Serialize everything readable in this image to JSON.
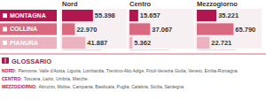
{
  "chart_data": {
    "type": "bar",
    "orientation": "horizontal",
    "data_labels": true,
    "tick_labels": false,
    "categories": [
      "MONTAGNA",
      "COLLINA",
      "PIANURA"
    ],
    "xlim": [
      0,
      70000
    ],
    "series": [
      {
        "name": "Nord",
        "values": [
          55398,
          22970,
          41887
        ],
        "value_labels": [
          "55.398",
          "22.970",
          "41.887"
        ],
        "colors": [
          "#b0174f",
          "#d8697f",
          "#ebb3c0"
        ]
      },
      {
        "name": "Centro",
        "values": [
          15657,
          37067,
          5362
        ],
        "value_labels": [
          "15.657",
          "37.067",
          "5.362"
        ],
        "colors": [
          "#b0174f",
          "#d8697f",
          "#ebb3c0"
        ]
      },
      {
        "name": "Mezzogiorno",
        "values": [
          35221,
          65790,
          22721
        ],
        "value_labels": [
          "35.221",
          "65.790",
          "22.721"
        ],
        "colors": [
          "#b0174f",
          "#d8697f",
          "#ebb3c0"
        ]
      }
    ]
  },
  "glossary": {
    "title": "GLOSSARIO",
    "entries": [
      {
        "label": "NORD:",
        "text": "Piemonte, Valle d'Aosta, Liguria, Lombardia, Trentino-Alto Adige, Friuli-Venezia Giulia, Veneto, Emilia-Romagna."
      },
      {
        "label": "CENTRO:",
        "text": "Toscana, Lazio, Umbria, Marche."
      },
      {
        "label": "MEZZOGIORNO:",
        "text": "Abruzzo, Molise, Campania, Basilicata, Puglia, Calabria, Sicilia, Sardegna."
      }
    ]
  }
}
